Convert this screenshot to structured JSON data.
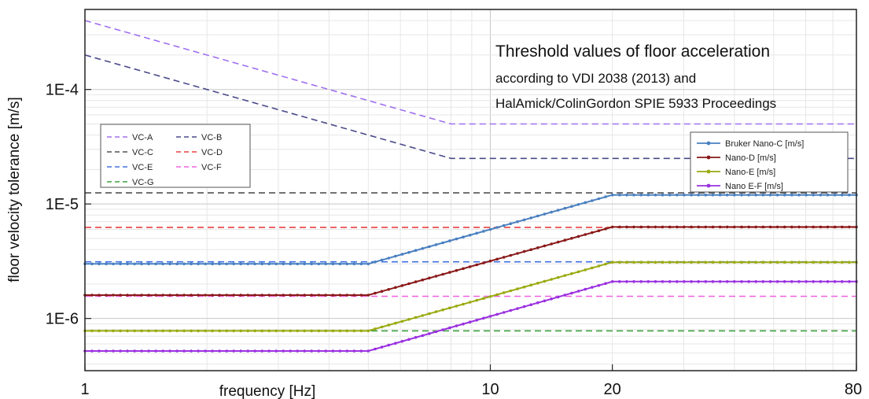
{
  "chart_data": {
    "type": "line",
    "title": "Threshold values of floor acceleration",
    "subtitle_lines": [
      "according to VDI 2038 (2013) and",
      "HalAmick/ColinGordon SPIE 5933 Proceedings"
    ],
    "xlabel": "frequency [Hz]",
    "ylabel": "floor velocity tolerance [m/s]",
    "xscale": "log",
    "yscale": "log",
    "xlim": [
      1,
      80
    ],
    "ylim": [
      3.5e-07,
      0.0005
    ],
    "x_ticks": [
      {
        "value": 1,
        "label": "1"
      },
      {
        "value": 10,
        "label": "10"
      },
      {
        "value": 20,
        "label": "20"
      },
      {
        "value": 80,
        "label": "80"
      }
    ],
    "y_ticks": [
      {
        "value": 1e-06,
        "label": "1E-6"
      },
      {
        "value": 1e-05,
        "label": "1E-5"
      },
      {
        "value": 0.0001,
        "label": "1E-4"
      }
    ],
    "grid": true,
    "series": [
      {
        "name": "VC-A",
        "group": "vc",
        "color": "#a070f0",
        "style": "dashed",
        "x": [
          1,
          8,
          80
        ],
        "y": [
          0.0004,
          5e-05,
          5e-05
        ]
      },
      {
        "name": "VC-B",
        "group": "vc",
        "color": "#4a4a8a",
        "style": "dashed",
        "x": [
          1,
          8,
          80
        ],
        "y": [
          0.0002,
          2.5e-05,
          2.5e-05
        ]
      },
      {
        "name": "VC-C",
        "group": "vc",
        "color": "#505050",
        "style": "dashed",
        "x": [
          1,
          80
        ],
        "y": [
          1.25e-05,
          1.25e-05
        ]
      },
      {
        "name": "VC-D",
        "group": "vc",
        "color": "#e84040",
        "style": "dashed",
        "x": [
          1,
          80
        ],
        "y": [
          6.25e-06,
          6.25e-06
        ]
      },
      {
        "name": "VC-E",
        "group": "vc",
        "color": "#4070e0",
        "style": "dashed",
        "x": [
          1,
          80
        ],
        "y": [
          3.125e-06,
          3.125e-06
        ]
      },
      {
        "name": "VC-F",
        "group": "vc",
        "color": "#f060e0",
        "style": "dashed",
        "x": [
          1,
          80
        ],
        "y": [
          1.5625e-06,
          1.5625e-06
        ]
      },
      {
        "name": "VC-G",
        "group": "vc",
        "color": "#40a040",
        "style": "dashed",
        "x": [
          1,
          80
        ],
        "y": [
          7.8e-07,
          7.8e-07
        ]
      },
      {
        "name": "Bruker Nano-C [m/s]",
        "group": "nano",
        "color": "#4a80c0",
        "style": "dotted-solid",
        "x": [
          1,
          5,
          20,
          80
        ],
        "y": [
          3e-06,
          3e-06,
          1.2e-05,
          1.2e-05
        ]
      },
      {
        "name": "Nano-D [m/s]",
        "group": "nano",
        "color": "#8a1a1a",
        "style": "dotted-solid",
        "x": [
          1,
          5,
          20,
          80
        ],
        "y": [
          1.6e-06,
          1.6e-06,
          6.3e-06,
          6.3e-06
        ]
      },
      {
        "name": "Nano-E [m/s]",
        "group": "nano",
        "color": "#9aaa10",
        "style": "dotted-solid",
        "x": [
          1,
          5,
          20,
          80
        ],
        "y": [
          7.8e-07,
          7.8e-07,
          3.1e-06,
          3.1e-06
        ]
      },
      {
        "name": "Nano E-F [m/s]",
        "group": "nano",
        "color": "#9a30e0",
        "style": "dotted-solid",
        "x": [
          1,
          5,
          20,
          80
        ],
        "y": [
          5.2e-07,
          5.2e-07,
          2.1e-06,
          2.1e-06
        ]
      }
    ],
    "legends": [
      {
        "placement": "left",
        "series": [
          "VC-A",
          "VC-B",
          "VC-C",
          "VC-D",
          "VC-E",
          "VC-F",
          "VC-G"
        ]
      },
      {
        "placement": "right",
        "series": [
          "Bruker Nano-C [m/s]",
          "Nano-D [m/s]",
          "Nano-E [m/s]",
          "Nano E-F [m/s]"
        ]
      }
    ]
  }
}
